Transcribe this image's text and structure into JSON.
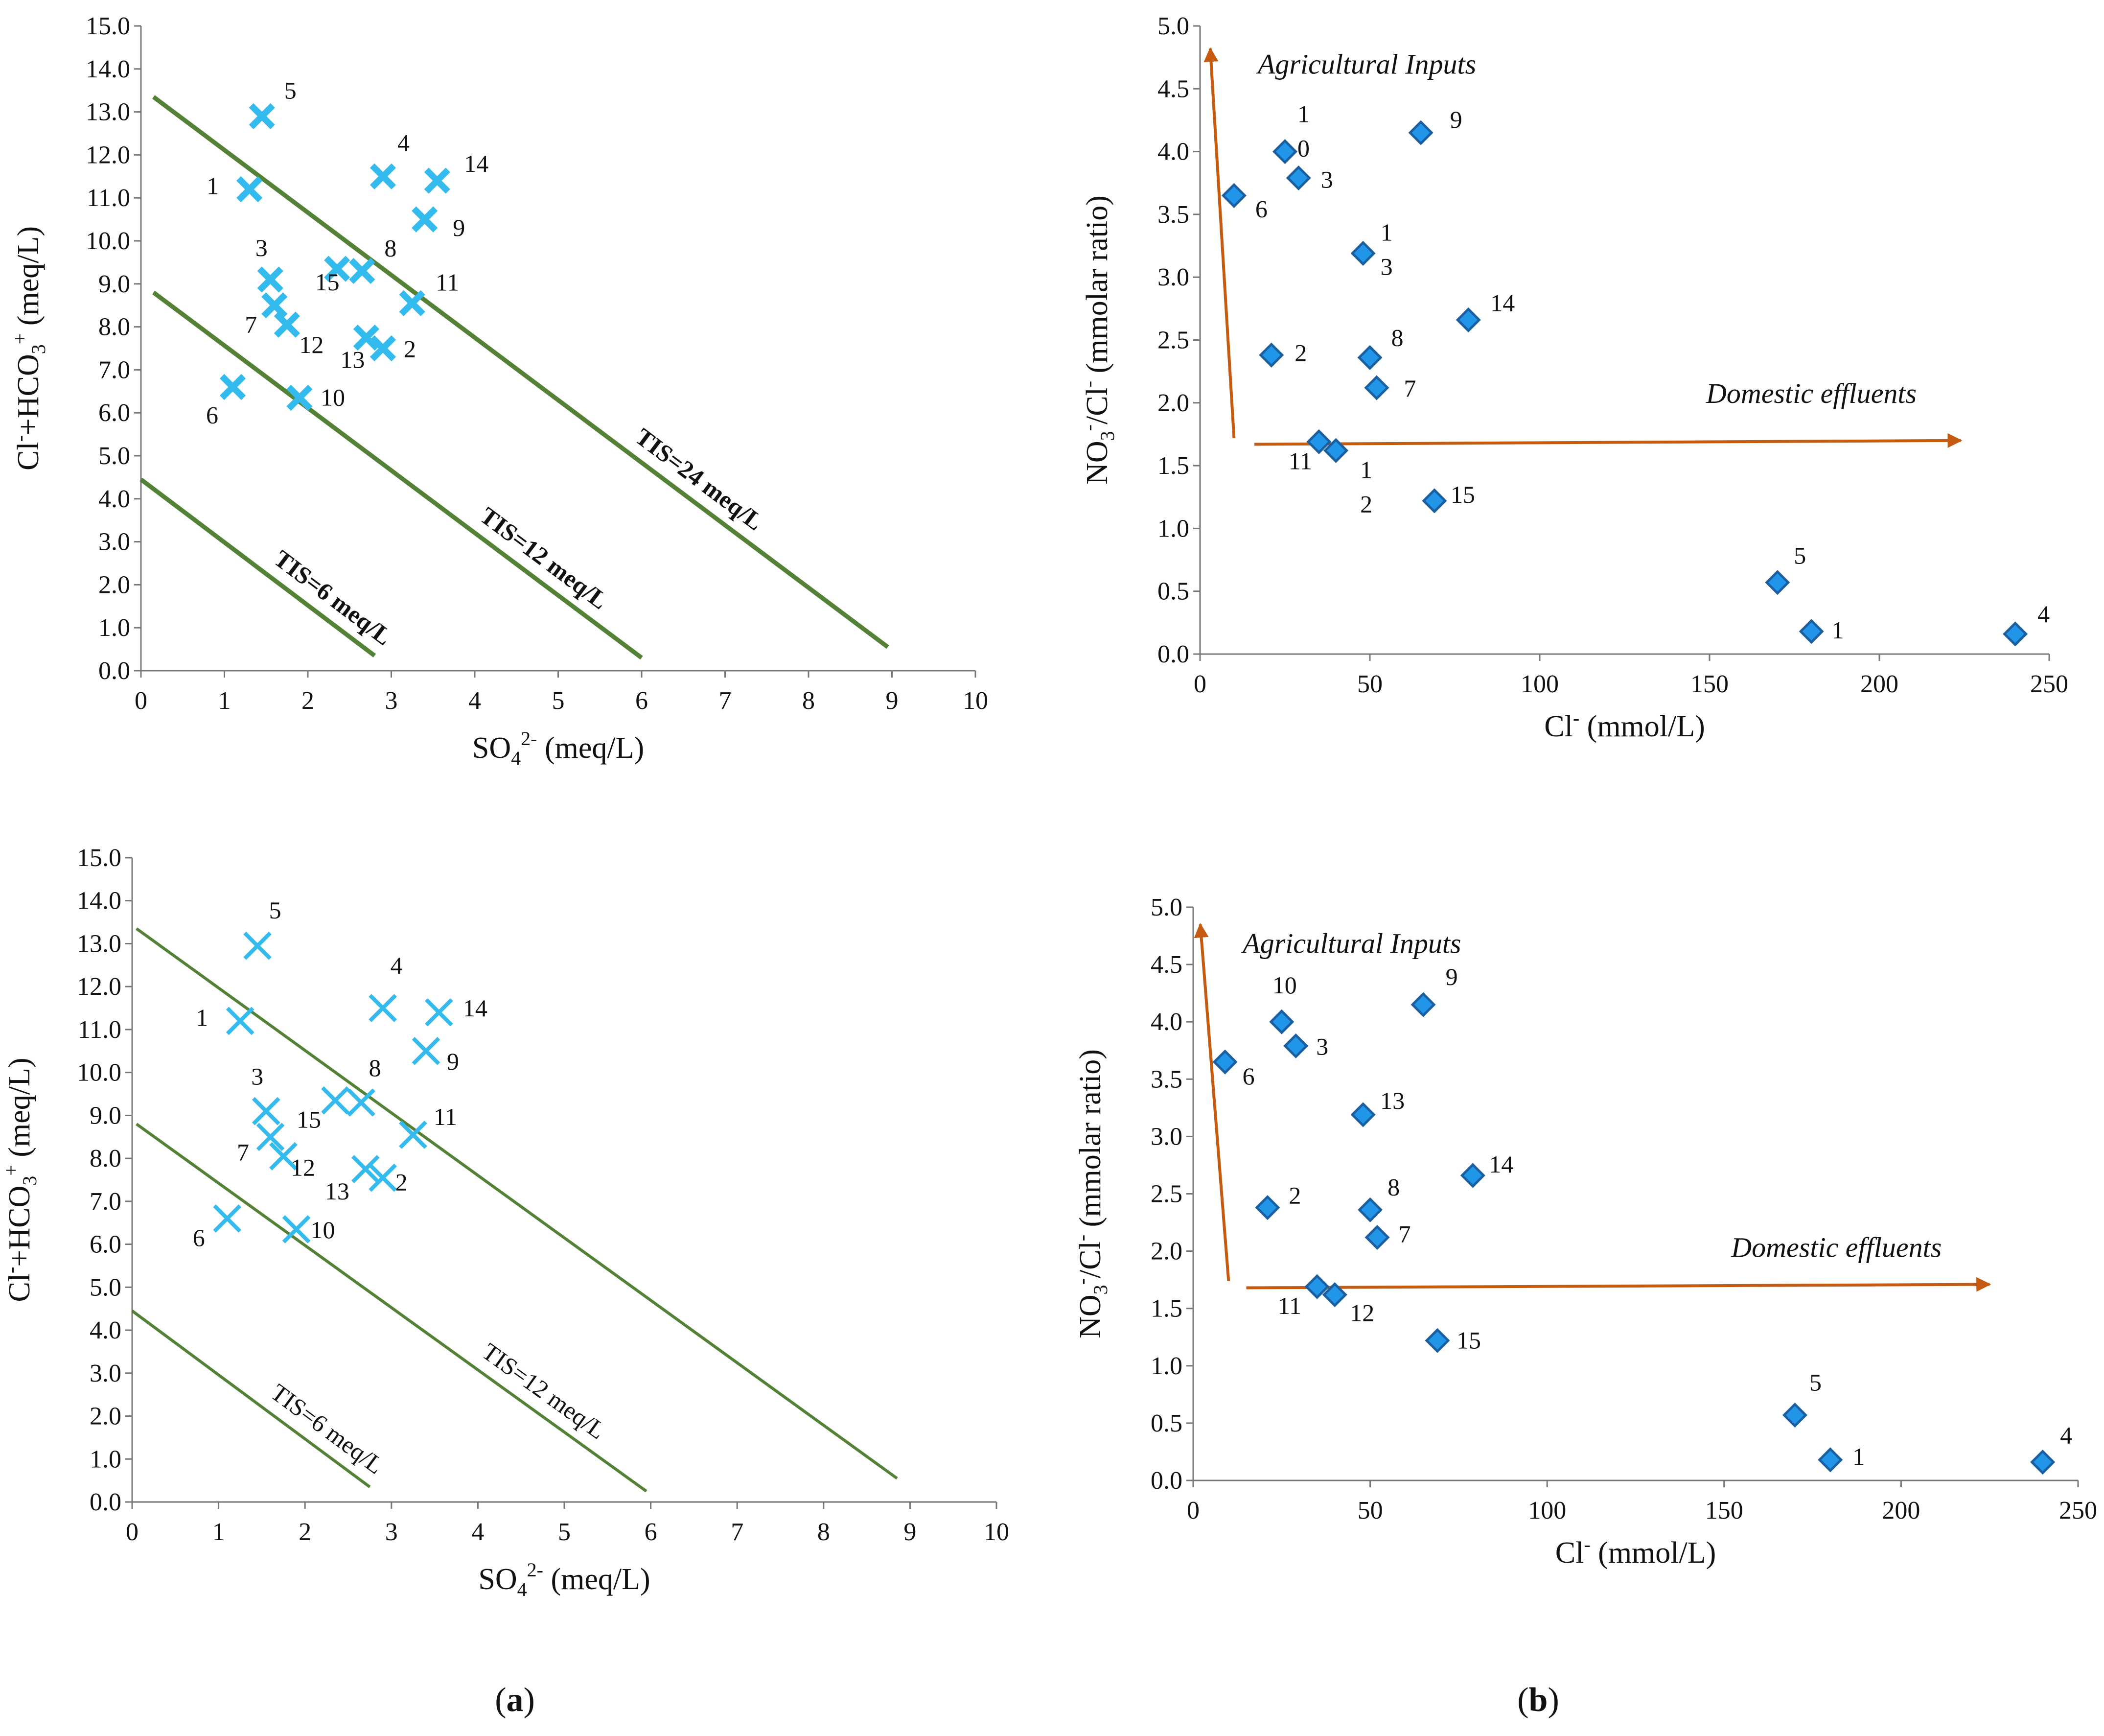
{
  "panel_labels": {
    "a": "a",
    "b": "b"
  },
  "colors": {
    "cross": "#33bbee",
    "diamond_fill": "#2196e8",
    "diamond_stroke": "#1a5fa0",
    "tis_line": "#538135",
    "arrow": "#c55a11",
    "axis": "#777777"
  },
  "chart_data": [
    {
      "id": "top-left",
      "type": "scatter",
      "marker": "cross",
      "xlabel": "SO4 2- (meq/L)",
      "ylabel": "Cl-+HCO3+ (meq/L)",
      "xlim": [
        0,
        10
      ],
      "ylim": [
        0,
        15
      ],
      "x_ticks": [
        "0",
        "1",
        "2",
        "3",
        "4",
        "5",
        "6",
        "7",
        "8",
        "9",
        "10"
      ],
      "y_ticks": [
        "0.0",
        "1.0",
        "2.0",
        "3.0",
        "4.0",
        "5.0",
        "6.0",
        "7.0",
        "8.0",
        "9.0",
        "10.0",
        "11.0",
        "12.0",
        "13.0",
        "14.0",
        "15.0"
      ],
      "points": [
        {
          "label": "1",
          "x": 1.3,
          "y": 11.2
        },
        {
          "label": "2",
          "x": 2.9,
          "y": 7.5
        },
        {
          "label": "3",
          "x": 1.55,
          "y": 9.1
        },
        {
          "label": "4",
          "x": 2.9,
          "y": 11.5
        },
        {
          "label": "5",
          "x": 1.45,
          "y": 12.9
        },
        {
          "label": "6",
          "x": 1.1,
          "y": 6.6
        },
        {
          "label": "7",
          "x": 1.6,
          "y": 8.5
        },
        {
          "label": "8",
          "x": 2.65,
          "y": 9.3
        },
        {
          "label": "9",
          "x": 3.4,
          "y": 10.5
        },
        {
          "label": "10",
          "x": 1.9,
          "y": 6.35
        },
        {
          "label": "11",
          "x": 3.25,
          "y": 8.55
        },
        {
          "label": "12",
          "x": 1.75,
          "y": 8.05
        },
        {
          "label": "13",
          "x": 2.7,
          "y": 7.75
        },
        {
          "label": "14",
          "x": 3.55,
          "y": 11.4
        },
        {
          "label": "15",
          "x": 2.35,
          "y": 9.35
        }
      ],
      "lines": [
        {
          "label": "TIS=24 meq/L",
          "from": [
            0.15,
            13.35
          ],
          "to": [
            8.95,
            0.55
          ]
        },
        {
          "label": "TIS=12 meq/L",
          "from": [
            0.15,
            8.8
          ],
          "to": [
            6.0,
            0.3
          ]
        },
        {
          "label": "TIS=6 meq/L",
          "from": [
            0.0,
            4.45
          ],
          "to": [
            2.8,
            0.35
          ]
        }
      ]
    },
    {
      "id": "top-right",
      "type": "scatter",
      "marker": "diamond",
      "xlabel": "Cl- (mmol/L)",
      "ylabel": "NO3-/Cl- (mmolar ratio)",
      "xlim": [
        0,
        250
      ],
      "ylim": [
        0,
        5
      ],
      "x_ticks": [
        "0",
        "50",
        "100",
        "150",
        "200",
        "250"
      ],
      "y_ticks": [
        "0.0",
        "0.5",
        "1.0",
        "1.5",
        "2.0",
        "2.5",
        "3.0",
        "3.5",
        "4.0",
        "4.5",
        "5.0"
      ],
      "points": [
        {
          "label": "1",
          "x": 180,
          "y": 0.18
        },
        {
          "label": "2",
          "x": 21,
          "y": 2.38
        },
        {
          "label": "3",
          "x": 29,
          "y": 3.79
        },
        {
          "label": "4",
          "x": 240,
          "y": 0.16
        },
        {
          "label": "5",
          "x": 170,
          "y": 0.57
        },
        {
          "label": "6",
          "x": 10,
          "y": 3.65
        },
        {
          "label": "7",
          "x": 52,
          "y": 2.12
        },
        {
          "label": "8",
          "x": 50,
          "y": 2.36
        },
        {
          "label": "9",
          "x": 65,
          "y": 4.15
        },
        {
          "label": "10",
          "x": 25,
          "y": 4.0
        },
        {
          "label": "11",
          "x": 35,
          "y": 1.69
        },
        {
          "label": "12",
          "x": 40,
          "y": 1.62
        },
        {
          "label": "13",
          "x": 48,
          "y": 3.19
        },
        {
          "label": "14",
          "x": 79,
          "y": 2.66
        },
        {
          "label": "15",
          "x": 69,
          "y": 1.22
        }
      ],
      "annotations": [
        "Agricultural Inputs",
        "Domestic effluents"
      ]
    },
    {
      "id": "bottom-left",
      "type": "scatter",
      "marker": "cross",
      "xlabel": "SO4 2- (meq/L)",
      "ylabel": "Cl-+HCO3+ (meq/L)",
      "xlim": [
        0,
        10
      ],
      "ylim": [
        0,
        15
      ],
      "x_ticks": [
        "0",
        "1",
        "2",
        "3",
        "4",
        "5",
        "6",
        "7",
        "8",
        "9",
        "10"
      ],
      "y_ticks": [
        "0.0",
        "1.0",
        "2.0",
        "3.0",
        "4.0",
        "5.0",
        "6.0",
        "7.0",
        "8.0",
        "9.0",
        "10.0",
        "11.0",
        "12.0",
        "13.0",
        "14.0",
        "15.0"
      ],
      "points": [
        {
          "label": "1",
          "x": 1.25,
          "y": 11.2
        },
        {
          "label": "2",
          "x": 2.9,
          "y": 7.55
        },
        {
          "label": "3",
          "x": 1.55,
          "y": 9.1
        },
        {
          "label": "4",
          "x": 2.9,
          "y": 11.5
        },
        {
          "label": "5",
          "x": 1.45,
          "y": 12.95
        },
        {
          "label": "6",
          "x": 1.1,
          "y": 6.6
        },
        {
          "label": "7",
          "x": 1.6,
          "y": 8.5
        },
        {
          "label": "8",
          "x": 2.65,
          "y": 9.3
        },
        {
          "label": "9",
          "x": 3.4,
          "y": 10.5
        },
        {
          "label": "10",
          "x": 1.9,
          "y": 6.35
        },
        {
          "label": "11",
          "x": 3.25,
          "y": 8.55
        },
        {
          "label": "12",
          "x": 1.75,
          "y": 8.05
        },
        {
          "label": "13",
          "x": 2.7,
          "y": 7.75
        },
        {
          "label": "14",
          "x": 3.55,
          "y": 11.4
        },
        {
          "label": "15",
          "x": 2.35,
          "y": 9.35
        }
      ],
      "lines": [
        {
          "label": "",
          "from": [
            0.05,
            13.35
          ],
          "to": [
            8.85,
            0.55
          ]
        },
        {
          "label": "TIS=12 meq/L",
          "from": [
            0.05,
            8.8
          ],
          "to": [
            5.95,
            0.25
          ]
        },
        {
          "label": "TIS=6 meq/L",
          "from": [
            0.0,
            4.45
          ],
          "to": [
            2.75,
            0.35
          ]
        }
      ]
    },
    {
      "id": "bottom-right",
      "type": "scatter",
      "marker": "diamond",
      "xlabel": "Cl- (mmol/L)",
      "ylabel": "NO3-/Cl- (mmolar ratio)",
      "xlim": [
        0,
        250
      ],
      "ylim": [
        0,
        5
      ],
      "x_ticks": [
        "0",
        "50",
        "100",
        "150",
        "200",
        "250"
      ],
      "y_ticks": [
        "0.0",
        "0.5",
        "1.0",
        "1.5",
        "2.0",
        "2.5",
        "3.0",
        "3.5",
        "4.0",
        "4.5",
        "5.0"
      ],
      "points": [
        {
          "label": "1",
          "x": 180,
          "y": 0.18
        },
        {
          "label": "2",
          "x": 21,
          "y": 2.38
        },
        {
          "label": "3",
          "x": 29,
          "y": 3.79
        },
        {
          "label": "4",
          "x": 240,
          "y": 0.16
        },
        {
          "label": "5",
          "x": 170,
          "y": 0.57
        },
        {
          "label": "6",
          "x": 9,
          "y": 3.65
        },
        {
          "label": "7",
          "x": 52,
          "y": 2.12
        },
        {
          "label": "8",
          "x": 50,
          "y": 2.36
        },
        {
          "label": "9",
          "x": 65,
          "y": 4.15
        },
        {
          "label": "10",
          "x": 25,
          "y": 4.0
        },
        {
          "label": "11",
          "x": 35,
          "y": 1.69
        },
        {
          "label": "12",
          "x": 40,
          "y": 1.62
        },
        {
          "label": "13",
          "x": 48,
          "y": 3.19
        },
        {
          "label": "14",
          "x": 79,
          "y": 2.66
        },
        {
          "label": "15",
          "x": 69,
          "y": 1.22
        }
      ],
      "annotations": [
        "Agricultural Inputs",
        "Domestic effluents"
      ]
    }
  ]
}
